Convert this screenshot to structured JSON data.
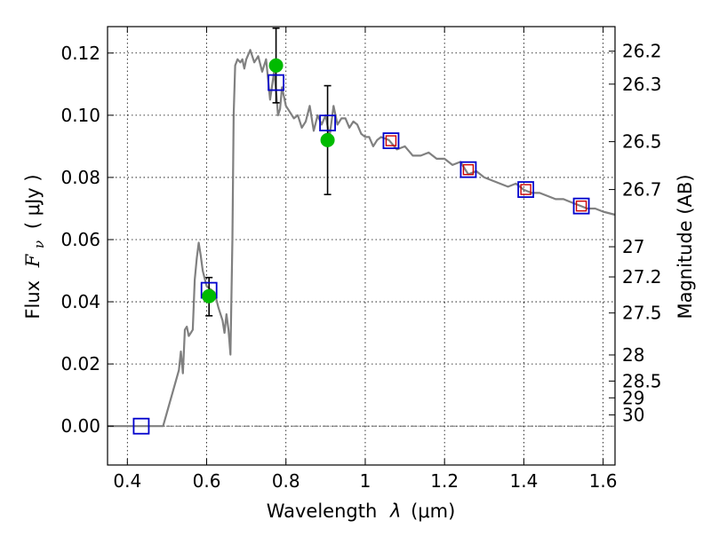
{
  "chart_data": {
    "type": "scatter",
    "xlabel_text": "Wavelength",
    "xlabel_lambda": "λ",
    "xlabel_unit": "(μm)",
    "ylabel_text": "Flux",
    "ylabel_sym": "F",
    "ylabel_sub": "ν",
    "ylabel_unit": "( μJy )",
    "y2label": "Magnitude (AB)",
    "xlim": [
      0.35,
      1.63
    ],
    "ylim": [
      -0.0125,
      0.1285
    ],
    "grid": true,
    "x_ticks": [
      0.4,
      0.6,
      0.8,
      1.0,
      1.2,
      1.4,
      1.6
    ],
    "x_tick_labels": [
      "0.4",
      "0.6",
      "0.8",
      "1",
      "1.2",
      "1.4",
      "1.6"
    ],
    "y_ticks": [
      0.0,
      0.02,
      0.04,
      0.06,
      0.08,
      0.1,
      0.12
    ],
    "y_tick_labels": [
      "0.00",
      "0.02",
      "0.04",
      "0.06",
      "0.08",
      "0.10",
      "0.12"
    ],
    "y2_ticks": [
      {
        "label": "26.2",
        "flux": 0.1206
      },
      {
        "label": "26.3",
        "flux": 0.11
      },
      {
        "label": "26.5",
        "flux": 0.0915
      },
      {
        "label": "26.7",
        "flux": 0.0761
      },
      {
        "label": "27",
        "flux": 0.0577
      },
      {
        "label": "27.2",
        "flux": 0.048
      },
      {
        "label": "27.5",
        "flux": 0.0364
      },
      {
        "label": "28",
        "flux": 0.0229
      },
      {
        "label": "28.5",
        "flux": 0.0145
      },
      {
        "label": "29",
        "flux": 0.0091
      },
      {
        "label": "30",
        "flux": 0.0036
      }
    ],
    "zero_line": 0.0,
    "series": [
      {
        "kind": "line",
        "color": "#808080",
        "x": [
          0.35,
          0.49,
          0.51,
          0.53,
          0.535,
          0.54,
          0.545,
          0.55,
          0.555,
          0.56,
          0.565,
          0.57,
          0.575,
          0.58,
          0.585,
          0.59,
          0.6,
          0.61,
          0.62,
          0.63,
          0.64,
          0.645,
          0.65,
          0.655,
          0.66,
          0.665,
          0.668,
          0.672,
          0.678,
          0.685,
          0.69,
          0.695,
          0.7,
          0.71,
          0.72,
          0.73,
          0.74,
          0.75,
          0.76,
          0.77,
          0.775,
          0.78,
          0.785,
          0.79,
          0.8,
          0.81,
          0.82,
          0.83,
          0.84,
          0.85,
          0.86,
          0.87,
          0.88,
          0.89,
          0.9,
          0.91,
          0.92,
          0.93,
          0.94,
          0.95,
          0.96,
          0.97,
          0.98,
          0.99,
          1.0,
          1.01,
          1.02,
          1.03,
          1.04,
          1.06,
          1.08,
          1.1,
          1.12,
          1.14,
          1.16,
          1.18,
          1.2,
          1.22,
          1.24,
          1.26,
          1.28,
          1.3,
          1.32,
          1.34,
          1.36,
          1.38,
          1.4,
          1.42,
          1.44,
          1.46,
          1.48,
          1.5,
          1.52,
          1.54,
          1.56,
          1.58,
          1.6,
          1.63
        ],
        "y": [
          0.0,
          0.0,
          0.009,
          0.018,
          0.024,
          0.017,
          0.031,
          0.032,
          0.029,
          0.03,
          0.031,
          0.047,
          0.054,
          0.059,
          0.055,
          0.05,
          0.045,
          0.044,
          0.043,
          0.038,
          0.034,
          0.03,
          0.036,
          0.031,
          0.023,
          0.06,
          0.1,
          0.116,
          0.118,
          0.117,
          0.118,
          0.115,
          0.118,
          0.121,
          0.117,
          0.119,
          0.114,
          0.118,
          0.105,
          0.114,
          0.108,
          0.1,
          0.102,
          0.109,
          0.103,
          0.101,
          0.099,
          0.1,
          0.096,
          0.098,
          0.103,
          0.095,
          0.1,
          0.097,
          0.1,
          0.093,
          0.103,
          0.097,
          0.099,
          0.099,
          0.096,
          0.098,
          0.097,
          0.094,
          0.093,
          0.093,
          0.09,
          0.092,
          0.093,
          0.092,
          0.089,
          0.09,
          0.087,
          0.087,
          0.088,
          0.086,
          0.086,
          0.084,
          0.085,
          0.081,
          0.082,
          0.08,
          0.079,
          0.078,
          0.077,
          0.078,
          0.076,
          0.075,
          0.075,
          0.074,
          0.073,
          0.073,
          0.072,
          0.071,
          0.07,
          0.07,
          0.069,
          0.068
        ]
      },
      {
        "kind": "model-photometry",
        "marker": "open-square",
        "edge": "#0000cc",
        "x": [
          0.435,
          0.606,
          0.775,
          0.905,
          1.065,
          1.26,
          1.405,
          1.545
        ],
        "y": [
          0.0,
          0.0437,
          0.1105,
          0.0975,
          0.0918,
          0.0825,
          0.0761,
          0.0708
        ]
      },
      {
        "kind": "observed-small",
        "marker": "open-square",
        "edge": "#cc0000",
        "x": [
          1.065,
          1.26,
          1.405,
          1.545
        ],
        "y": [
          0.0918,
          0.0825,
          0.0761,
          0.0708
        ]
      },
      {
        "kind": "observed",
        "marker": "filled-circle",
        "color": "#00bb00",
        "x": [
          0.606,
          0.775,
          0.905
        ],
        "y": [
          0.0418,
          0.116,
          0.092
        ],
        "yerr_low": [
          0.0355,
          0.104,
          0.0745
        ],
        "yerr_high": [
          0.0478,
          0.128,
          0.1095
        ]
      }
    ]
  }
}
